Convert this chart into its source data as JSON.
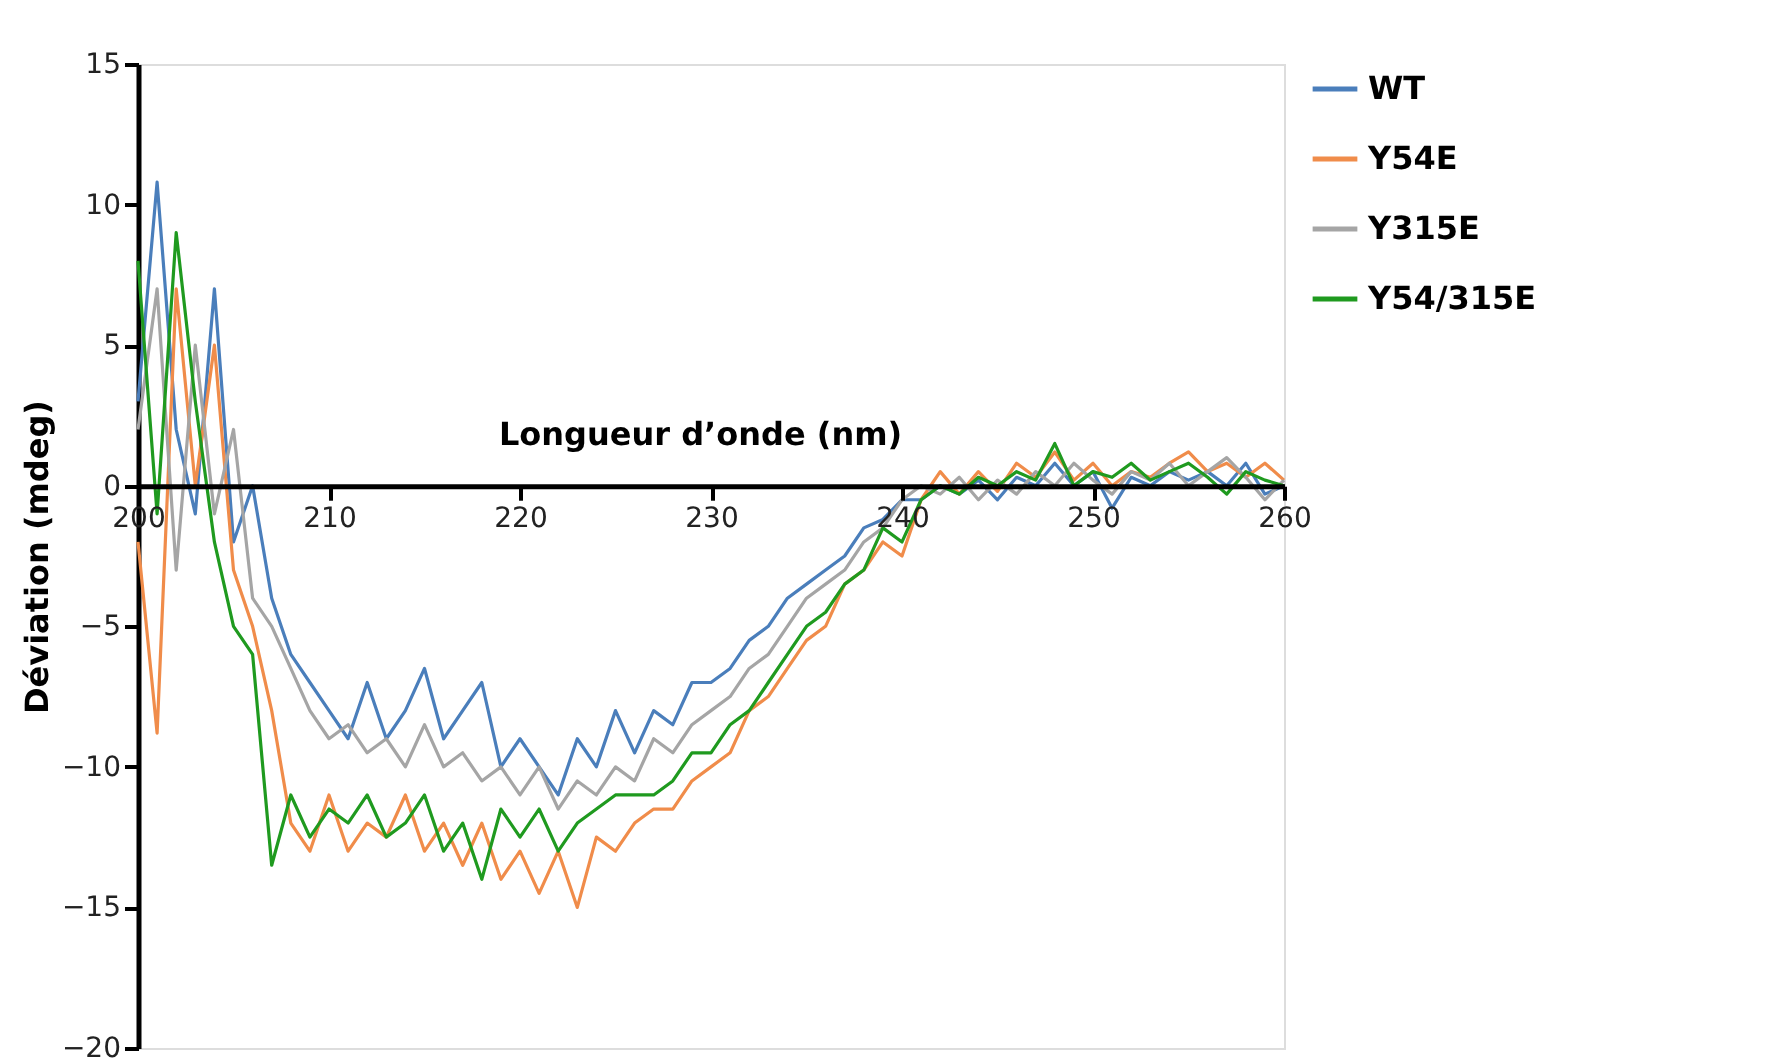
{
  "chart_data": {
    "type": "line",
    "xlabel": "Longueur d’onde (nm)",
    "ylabel": "Déviation (mdeg)",
    "x": [
      200,
      201,
      202,
      203,
      204,
      205,
      206,
      207,
      208,
      209,
      210,
      211,
      212,
      213,
      214,
      215,
      216,
      217,
      218,
      219,
      220,
      221,
      222,
      223,
      224,
      225,
      226,
      227,
      228,
      229,
      230,
      231,
      232,
      233,
      234,
      235,
      236,
      237,
      238,
      239,
      240,
      241,
      242,
      243,
      244,
      245,
      246,
      247,
      248,
      249,
      250,
      251,
      252,
      253,
      254,
      255,
      256,
      257,
      258,
      259,
      260
    ],
    "xlim": [
      200,
      260
    ],
    "xticks": [
      200,
      210,
      220,
      230,
      240,
      250,
      260
    ],
    "ylim": [
      -20,
      15
    ],
    "yticks": [
      -20,
      -15,
      -10,
      -5,
      0,
      5,
      10,
      15
    ],
    "grid": false,
    "legend": "right",
    "line_style": "solid",
    "marker": "none",
    "series": [
      {
        "name": "WT",
        "color": "#4a7ebb",
        "values": [
          3,
          10.8,
          2,
          -1,
          7,
          -2,
          0,
          -4,
          -6,
          -7,
          -8,
          -9,
          -7,
          -9,
          -8,
          -6.5,
          -9,
          -8,
          -7,
          -10,
          -9,
          -10,
          -11,
          -9,
          -10,
          -8,
          -9.5,
          -8,
          -8.5,
          -7,
          -7,
          -6.5,
          -5.5,
          -5,
          -4,
          -3.5,
          -3,
          -2.5,
          -1.5,
          -1.2,
          -0.5,
          -0.5,
          0,
          -0.3,
          0.2,
          -0.5,
          0.3,
          0,
          0.8,
          0,
          0.5,
          -0.8,
          0.3,
          0,
          0.5,
          0.2,
          0.5,
          0,
          0.8,
          -0.3,
          0
        ]
      },
      {
        "name": "Y54E",
        "color": "#f08c4a",
        "values": [
          -2,
          -8.8,
          7,
          0,
          5,
          -3,
          -5,
          -8,
          -12,
          -13,
          -11,
          -13,
          -12,
          -12.5,
          -11,
          -13,
          -12,
          -13.5,
          -12,
          -14,
          -13,
          -14.5,
          -13,
          -15,
          -12.5,
          -13,
          -12,
          -11.5,
          -11.5,
          -10.5,
          -10,
          -9.5,
          -8,
          -7.5,
          -6.5,
          -5.5,
          -5,
          -3.5,
          -3,
          -2,
          -2.5,
          -0.5,
          0.5,
          -0.3,
          0.5,
          -0.2,
          0.8,
          0.3,
          1.2,
          0.2,
          0.8,
          0,
          0.5,
          0.3,
          0.8,
          1.2,
          0.5,
          0.8,
          0.3,
          0.8,
          0.2
        ]
      },
      {
        "name": "Y315E",
        "color": "#a5a5a5",
        "values": [
          2,
          7,
          -3,
          5,
          -1,
          2,
          -4,
          -5,
          -6.5,
          -8,
          -9,
          -8.5,
          -9.5,
          -9,
          -10,
          -8.5,
          -10,
          -9.5,
          -10.5,
          -10,
          -11,
          -10,
          -11.5,
          -10.5,
          -11,
          -10,
          -10.5,
          -9,
          -9.5,
          -8.5,
          -8,
          -7.5,
          -6.5,
          -6,
          -5,
          -4,
          -3.5,
          -3,
          -2,
          -1.5,
          -0.5,
          0,
          -0.3,
          0.3,
          -0.5,
          0.2,
          -0.3,
          0.5,
          0,
          0.8,
          0.2,
          -0.3,
          0.5,
          0.2,
          0.8,
          0,
          0.5,
          1,
          0.3,
          -0.5,
          0.2
        ]
      },
      {
        "name": "Y54/315E",
        "color": "#1f9a1f",
        "values": [
          8,
          -1,
          9,
          3,
          -2,
          -5,
          -6,
          -13.5,
          -11,
          -12.5,
          -11.5,
          -12,
          -11,
          -12.5,
          -12,
          -11,
          -13,
          -12,
          -14,
          -11.5,
          -12.5,
          -11.5,
          -13,
          -12,
          -11.5,
          -11,
          -11,
          -11,
          -10.5,
          -9.5,
          -9.5,
          -8.5,
          -8,
          -7,
          -6,
          -5,
          -4.5,
          -3.5,
          -3,
          -1.5,
          -2,
          -0.5,
          0,
          -0.3,
          0.3,
          0,
          0.5,
          0.2,
          1.5,
          0,
          0.5,
          0.3,
          0.8,
          0.2,
          0.5,
          0.8,
          0.3,
          -0.3,
          0.5,
          0.2,
          0
        ]
      }
    ]
  }
}
